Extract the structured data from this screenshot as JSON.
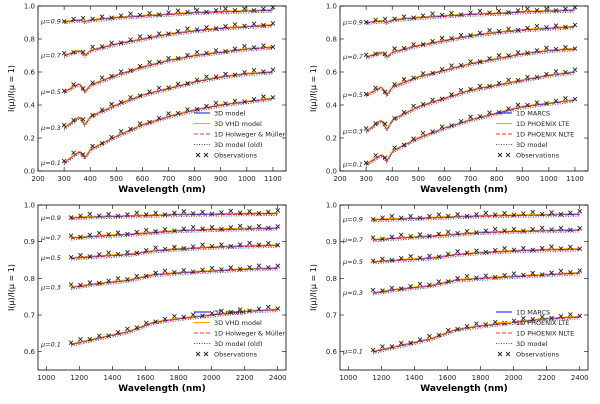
{
  "chart_data": [
    {
      "type": "line",
      "panel": "top-left",
      "xlabel": "Wavelength (nm)",
      "ylabel": "I(μ)/I(μ = 1)",
      "xlim": [
        200,
        1150
      ],
      "ylim": [
        0,
        1.0
      ],
      "xticks": [
        "200",
        "300",
        "400",
        "500",
        "600",
        "700",
        "800",
        "900",
        "1000",
        "1100"
      ],
      "yticks": [
        "0.0",
        "0.2",
        "0.4",
        "0.6",
        "0.8",
        "1.0"
      ],
      "mu_labels": [
        "μ=0.9",
        "μ=0.7",
        "μ=0.5",
        "μ=0.3",
        "μ=0.1"
      ],
      "legend_position": "bottom-right",
      "series": [
        {
          "name": "3D model",
          "color": "#1f1fff",
          "style": "solid"
        },
        {
          "name": "3D VHD model",
          "color": "#ffa500",
          "style": "solid"
        },
        {
          "name": "1D Holweger & Müller",
          "color": "#ff3030",
          "style": "dashed"
        },
        {
          "name": "3D model (old)",
          "color": "#555555",
          "style": "dotted"
        },
        {
          "name": "Observations",
          "color": "#222222",
          "style": "marker-x"
        }
      ],
      "curves": [
        {
          "mu": 0.9,
          "points": [
            [
              300,
              0.905
            ],
            [
              360,
              0.915
            ],
            [
              380,
              0.905
            ],
            [
              400,
              0.915
            ],
            [
              500,
              0.93
            ],
            [
              600,
              0.94
            ],
            [
              700,
              0.95
            ],
            [
              800,
              0.96
            ],
            [
              900,
              0.965
            ],
            [
              1000,
              0.97
            ],
            [
              1100,
              0.975
            ]
          ]
        },
        {
          "mu": 0.7,
          "points": [
            [
              300,
              0.7
            ],
            [
              360,
              0.73
            ],
            [
              380,
              0.7
            ],
            [
              400,
              0.73
            ],
            [
              500,
              0.77
            ],
            [
              600,
              0.8
            ],
            [
              700,
              0.83
            ],
            [
              800,
              0.85
            ],
            [
              900,
              0.865
            ],
            [
              1000,
              0.875
            ],
            [
              1100,
              0.885
            ]
          ]
        },
        {
          "mu": 0.5,
          "points": [
            [
              300,
              0.48
            ],
            [
              360,
              0.53
            ],
            [
              380,
              0.48
            ],
            [
              400,
              0.52
            ],
            [
              500,
              0.58
            ],
            [
              600,
              0.63
            ],
            [
              700,
              0.67
            ],
            [
              800,
              0.7
            ],
            [
              900,
              0.72
            ],
            [
              1000,
              0.74
            ],
            [
              1100,
              0.75
            ]
          ]
        },
        {
          "mu": 0.3,
          "points": [
            [
              300,
              0.26
            ],
            [
              360,
              0.33
            ],
            [
              380,
              0.28
            ],
            [
              400,
              0.33
            ],
            [
              500,
              0.4
            ],
            [
              600,
              0.46
            ],
            [
              700,
              0.5
            ],
            [
              800,
              0.54
            ],
            [
              900,
              0.57
            ],
            [
              1000,
              0.59
            ],
            [
              1100,
              0.6
            ]
          ]
        },
        {
          "mu": 0.1,
          "points": [
            [
              300,
              0.05
            ],
            [
              360,
              0.12
            ],
            [
              380,
              0.08
            ],
            [
              400,
              0.13
            ],
            [
              500,
              0.21
            ],
            [
              600,
              0.28
            ],
            [
              700,
              0.33
            ],
            [
              800,
              0.37
            ],
            [
              900,
              0.4
            ],
            [
              1000,
              0.42
            ],
            [
              1100,
              0.44
            ]
          ]
        }
      ]
    },
    {
      "type": "line",
      "panel": "top-right",
      "xlabel": "Wavelength (nm)",
      "ylabel": "I(μ)/I(μ = 1)",
      "xlim": [
        200,
        1150
      ],
      "ylim": [
        0,
        1.0
      ],
      "xticks": [
        "200",
        "300",
        "400",
        "500",
        "600",
        "700",
        "800",
        "900",
        "1000",
        "1100"
      ],
      "yticks": [
        "0.0",
        "0.2",
        "0.4",
        "0.6",
        "0.8",
        "1.0"
      ],
      "mu_labels": [
        "μ=0.9",
        "μ=0.7",
        "μ=0.5",
        "μ=0.3",
        "μ=0.1"
      ],
      "legend_position": "bottom-right",
      "series": [
        {
          "name": "1D MARCS",
          "color": "#1f1fff",
          "style": "solid"
        },
        {
          "name": "1D PHOENIX LTE",
          "color": "#ffa500",
          "style": "solid"
        },
        {
          "name": "1D PHOENIX NLTE",
          "color": "#ff3030",
          "style": "dashed"
        },
        {
          "name": "3D model",
          "color": "#555555",
          "style": "dotted"
        },
        {
          "name": "Observations",
          "color": "#222222",
          "style": "marker-x"
        }
      ],
      "curves": [
        {
          "mu": 0.9,
          "points": [
            [
              300,
              0.9
            ],
            [
              360,
              0.91
            ],
            [
              380,
              0.9
            ],
            [
              400,
              0.915
            ],
            [
              500,
              0.93
            ],
            [
              600,
              0.94
            ],
            [
              700,
              0.95
            ],
            [
              800,
              0.955
            ],
            [
              900,
              0.965
            ],
            [
              1000,
              0.97
            ],
            [
              1100,
              0.975
            ]
          ]
        },
        {
          "mu": 0.7,
          "points": [
            [
              300,
              0.69
            ],
            [
              360,
              0.72
            ],
            [
              380,
              0.69
            ],
            [
              400,
              0.72
            ],
            [
              500,
              0.76
            ],
            [
              600,
              0.79
            ],
            [
              700,
              0.82
            ],
            [
              800,
              0.84
            ],
            [
              900,
              0.855
            ],
            [
              1000,
              0.865
            ],
            [
              1100,
              0.875
            ]
          ]
        },
        {
          "mu": 0.5,
          "points": [
            [
              300,
              0.46
            ],
            [
              360,
              0.51
            ],
            [
              380,
              0.46
            ],
            [
              400,
              0.51
            ],
            [
              500,
              0.57
            ],
            [
              600,
              0.61
            ],
            [
              700,
              0.65
            ],
            [
              800,
              0.68
            ],
            [
              900,
              0.71
            ],
            [
              1000,
              0.73
            ],
            [
              1100,
              0.74
            ]
          ]
        },
        {
          "mu": 0.3,
          "points": [
            [
              300,
              0.24
            ],
            [
              360,
              0.31
            ],
            [
              380,
              0.25
            ],
            [
              400,
              0.31
            ],
            [
              500,
              0.39
            ],
            [
              600,
              0.44
            ],
            [
              700,
              0.49
            ],
            [
              800,
              0.52
            ],
            [
              900,
              0.55
            ],
            [
              1000,
              0.58
            ],
            [
              1100,
              0.6
            ]
          ]
        },
        {
          "mu": 0.1,
          "points": [
            [
              300,
              0.04
            ],
            [
              360,
              0.1
            ],
            [
              380,
              0.06
            ],
            [
              400,
              0.12
            ],
            [
              500,
              0.2
            ],
            [
              600,
              0.26
            ],
            [
              700,
              0.31
            ],
            [
              800,
              0.35
            ],
            [
              900,
              0.39
            ],
            [
              1000,
              0.41
            ],
            [
              1100,
              0.43
            ]
          ]
        }
      ]
    },
    {
      "type": "line",
      "panel": "bottom-left",
      "xlabel": "Wavelength (nm)",
      "ylabel": "I(μ)/I(μ = 1)",
      "xlim": [
        950,
        2450
      ],
      "ylim": [
        0.55,
        1.0
      ],
      "xticks": [
        "1000",
        "1200",
        "1400",
        "1600",
        "1800",
        "2000",
        "2200",
        "2400"
      ],
      "yticks": [
        "0.6",
        "0.7",
        "0.8",
        "0.9",
        "1.0"
      ],
      "mu_labels": [
        "μ=0.9",
        "μ=0.7",
        "μ=0.5",
        "μ=0.3",
        "μ=0.1"
      ],
      "legend_position": "bottom-right",
      "series": [
        {
          "name": "3D model",
          "color": "#1f1fff",
          "style": "solid"
        },
        {
          "name": "3D VHD model",
          "color": "#ffa500",
          "style": "solid"
        },
        {
          "name": "1D Holweger & Müller",
          "color": "#ff3030",
          "style": "dashed"
        },
        {
          "name": "3D model (old)",
          "color": "#555555",
          "style": "dotted"
        },
        {
          "name": "Observations",
          "color": "#222222",
          "style": "marker-x"
        }
      ],
      "curves": [
        {
          "mu": 0.9,
          "points": [
            [
              1150,
              0.965
            ],
            [
              1300,
              0.968
            ],
            [
              1500,
              0.97
            ],
            [
              1650,
              0.972
            ],
            [
              1800,
              0.974
            ],
            [
              2000,
              0.975
            ],
            [
              2200,
              0.976
            ],
            [
              2400,
              0.977
            ]
          ]
        },
        {
          "mu": 0.7,
          "points": [
            [
              1150,
              0.91
            ],
            [
              1300,
              0.915
            ],
            [
              1500,
              0.92
            ],
            [
              1650,
              0.925
            ],
            [
              1800,
              0.93
            ],
            [
              2000,
              0.933
            ],
            [
              2200,
              0.935
            ],
            [
              2400,
              0.937
            ]
          ]
        },
        {
          "mu": 0.5,
          "points": [
            [
              1150,
              0.855
            ],
            [
              1300,
              0.86
            ],
            [
              1500,
              0.865
            ],
            [
              1650,
              0.875
            ],
            [
              1800,
              0.88
            ],
            [
              2000,
              0.885
            ],
            [
              2200,
              0.888
            ],
            [
              2400,
              0.89
            ]
          ]
        },
        {
          "mu": 0.3,
          "points": [
            [
              1150,
              0.775
            ],
            [
              1300,
              0.785
            ],
            [
              1500,
              0.795
            ],
            [
              1650,
              0.81
            ],
            [
              1800,
              0.815
            ],
            [
              2000,
              0.82
            ],
            [
              2200,
              0.825
            ],
            [
              2400,
              0.828
            ]
          ]
        },
        {
          "mu": 0.1,
          "points": [
            [
              1150,
              0.62
            ],
            [
              1300,
              0.635
            ],
            [
              1500,
              0.655
            ],
            [
              1650,
              0.68
            ],
            [
              1800,
              0.69
            ],
            [
              2000,
              0.7
            ],
            [
              2200,
              0.71
            ],
            [
              2400,
              0.715
            ]
          ]
        }
      ]
    },
    {
      "type": "line",
      "panel": "bottom-right",
      "xlabel": "Wavelength (nm)",
      "ylabel": "I(μ)/I(μ = 1)",
      "xlim": [
        950,
        2450
      ],
      "ylim": [
        0.55,
        1.0
      ],
      "xticks": [
        "1000",
        "1200",
        "1400",
        "1600",
        "1800",
        "2000",
        "2200",
        "2400"
      ],
      "yticks": [
        "0.6",
        "0.7",
        "0.8",
        "0.9",
        "1.0"
      ],
      "mu_labels": [
        "μ=0.9",
        "μ=0.7",
        "μ=0.5",
        "μ=0.3",
        "μ=0.1"
      ],
      "legend_position": "bottom-right",
      "series": [
        {
          "name": "1D MARCS",
          "color": "#1f1fff",
          "style": "solid"
        },
        {
          "name": "1D PHOENIX LTE",
          "color": "#ffa500",
          "style": "solid"
        },
        {
          "name": "1D PHOENIX NLTE",
          "color": "#ff3030",
          "style": "dashed"
        },
        {
          "name": "3D model",
          "color": "#555555",
          "style": "dotted"
        },
        {
          "name": "Observations",
          "color": "#222222",
          "style": "marker-x"
        }
      ],
      "curves": [
        {
          "mu": 0.9,
          "points": [
            [
              1150,
              0.96
            ],
            [
              1300,
              0.962
            ],
            [
              1500,
              0.965
            ],
            [
              1650,
              0.968
            ],
            [
              1800,
              0.97
            ],
            [
              2000,
              0.972
            ],
            [
              2200,
              0.973
            ],
            [
              2400,
              0.975
            ]
          ]
        },
        {
          "mu": 0.7,
          "points": [
            [
              1150,
              0.905
            ],
            [
              1300,
              0.91
            ],
            [
              1500,
              0.915
            ],
            [
              1650,
              0.92
            ],
            [
              1800,
              0.925
            ],
            [
              2000,
              0.928
            ],
            [
              2200,
              0.93
            ],
            [
              2400,
              0.932
            ]
          ]
        },
        {
          "mu": 0.5,
          "points": [
            [
              1150,
              0.845
            ],
            [
              1300,
              0.85
            ],
            [
              1500,
              0.855
            ],
            [
              1650,
              0.865
            ],
            [
              1800,
              0.87
            ],
            [
              2000,
              0.875
            ],
            [
              2200,
              0.878
            ],
            [
              2400,
              0.88
            ]
          ]
        },
        {
          "mu": 0.3,
          "points": [
            [
              1150,
              0.76
            ],
            [
              1300,
              0.77
            ],
            [
              1500,
              0.78
            ],
            [
              1650,
              0.795
            ],
            [
              1800,
              0.8
            ],
            [
              2000,
              0.805
            ],
            [
              2200,
              0.81
            ],
            [
              2400,
              0.815
            ]
          ]
        },
        {
          "mu": 0.1,
          "points": [
            [
              1150,
              0.6
            ],
            [
              1300,
              0.615
            ],
            [
              1500,
              0.635
            ],
            [
              1650,
              0.66
            ],
            [
              1800,
              0.67
            ],
            [
              2000,
              0.68
            ],
            [
              2200,
              0.69
            ],
            [
              2400,
              0.695
            ]
          ]
        }
      ]
    }
  ]
}
